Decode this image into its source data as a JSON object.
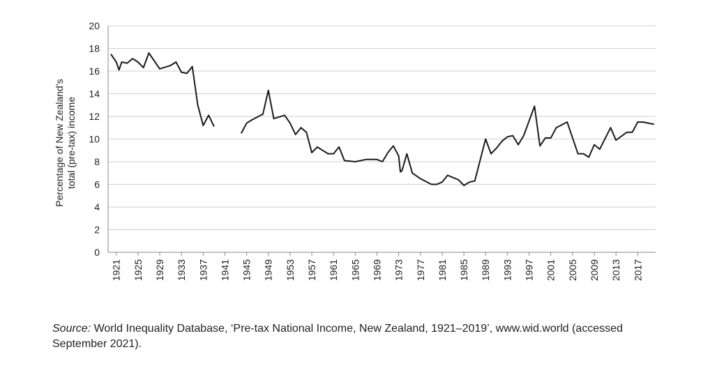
{
  "chart_data": {
    "type": "line",
    "title": "",
    "xlabel": "",
    "ylabel_lines": [
      "Percentage of New Zealand’s",
      "total (pre-tax) income"
    ],
    "ylim": [
      0,
      20
    ],
    "y_ticks": [
      0,
      2,
      4,
      6,
      8,
      10,
      12,
      14,
      16,
      18,
      20
    ],
    "x_ticks": [
      1921,
      1925,
      1929,
      1933,
      1937,
      1941,
      1945,
      1949,
      1953,
      1957,
      1961,
      1965,
      1969,
      1973,
      1977,
      1981,
      1985,
      1989,
      1993,
      1997,
      2001,
      2005,
      2009,
      2013,
      2017
    ],
    "grid": "horizontal",
    "line_color": "#1a1a1a",
    "series": [
      {
        "segments": [
          [
            [
              1920,
              17.5
            ],
            [
              1921,
              16.8
            ],
            [
              1921.5,
              16.1
            ],
            [
              1922,
              16.8
            ],
            [
              1923,
              16.7
            ],
            [
              1924,
              17.1
            ],
            [
              1925,
              16.8
            ],
            [
              1926,
              16.3
            ],
            [
              1927,
              17.6
            ],
            [
              1929,
              16.2
            ],
            [
              1931,
              16.5
            ],
            [
              1932,
              16.8
            ],
            [
              1933,
              15.9
            ],
            [
              1934,
              15.8
            ],
            [
              1935,
              16.4
            ],
            [
              1936,
              13.0
            ],
            [
              1937,
              11.2
            ],
            [
              1938,
              12.1
            ],
            [
              1939,
              11.1
            ]
          ],
          [
            [
              1944,
              10.5
            ],
            [
              1945,
              11.4
            ],
            [
              1946,
              11.7
            ],
            [
              1948,
              12.2
            ],
            [
              1949,
              14.3
            ],
            [
              1950,
              11.8
            ],
            [
              1952,
              12.1
            ],
            [
              1953,
              11.4
            ],
            [
              1954,
              10.4
            ],
            [
              1955,
              11.0
            ],
            [
              1956,
              10.6
            ],
            [
              1957,
              8.8
            ],
            [
              1958,
              9.3
            ],
            [
              1959,
              9.0
            ],
            [
              1960,
              8.7
            ],
            [
              1961,
              8.7
            ],
            [
              1962,
              9.3
            ],
            [
              1963,
              8.1
            ],
            [
              1965,
              8.0
            ],
            [
              1967,
              8.2
            ],
            [
              1969,
              8.2
            ],
            [
              1970,
              8.0
            ],
            [
              1971,
              8.8
            ],
            [
              1972,
              9.4
            ],
            [
              1973,
              8.5
            ],
            [
              1973.3,
              7.1
            ],
            [
              1973.6,
              7.2
            ],
            [
              1974.5,
              8.7
            ],
            [
              1975.5,
              7.0
            ],
            [
              1977,
              6.5
            ],
            [
              1979,
              6.0
            ],
            [
              1980,
              6.0
            ],
            [
              1981,
              6.2
            ],
            [
              1982,
              6.8
            ],
            [
              1984,
              6.4
            ],
            [
              1985,
              5.9
            ],
            [
              1986,
              6.2
            ],
            [
              1987,
              6.3
            ],
            [
              1989,
              10.0
            ],
            [
              1990,
              8.7
            ],
            [
              1991,
              9.2
            ],
            [
              1992,
              9.8
            ],
            [
              1993,
              10.2
            ],
            [
              1994,
              10.3
            ],
            [
              1995,
              9.5
            ],
            [
              1996,
              10.3
            ],
            [
              1998,
              12.9
            ],
            [
              1999,
              9.4
            ],
            [
              2000,
              10.1
            ],
            [
              2001,
              10.1
            ],
            [
              2002,
              11.0
            ],
            [
              2004,
              11.5
            ],
            [
              2006,
              8.7
            ],
            [
              2007,
              8.7
            ],
            [
              2008,
              8.4
            ],
            [
              2009,
              9.5
            ],
            [
              2010,
              9.1
            ],
            [
              2012,
              11.0
            ],
            [
              2013,
              9.9
            ],
            [
              2015,
              10.6
            ],
            [
              2016,
              10.6
            ],
            [
              2017,
              11.5
            ],
            [
              2018,
              11.5
            ],
            [
              2020,
              11.3
            ]
          ]
        ]
      }
    ]
  },
  "source": {
    "label": "Source:",
    "text": " World Inequality Database, ‘Pre-tax National Income, New Zealand, 1921–2019’, www.wid.world (accessed September 2021)."
  }
}
